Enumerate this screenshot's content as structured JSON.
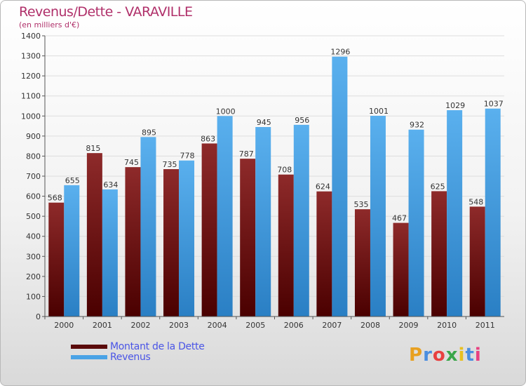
{
  "title": "Revenus/Dette - VARAVILLE",
  "subtitle": "(en milliers d'€)",
  "legend": {
    "dette_label": "Montant de la Dette",
    "revenus_label": "Revenus"
  },
  "logo": {
    "text": "Proxiti"
  },
  "colors": {
    "dette": "#7a1a1a",
    "revenus": "#4aa3e6",
    "title": "#b0306a",
    "legend_text": "#4a55e6"
  },
  "chart_data": {
    "type": "bar",
    "title": "Revenus/Dette - VARAVILLE",
    "ylabel": "(en milliers d'€)",
    "xlabel": "",
    "categories": [
      "2000",
      "2001",
      "2002",
      "2003",
      "2004",
      "2005",
      "2006",
      "2007",
      "2008",
      "2009",
      "2010",
      "2011"
    ],
    "series": [
      {
        "name": "Montant de la Dette",
        "values": [
          568,
          815,
          745,
          735,
          863,
          787,
          708,
          624,
          535,
          467,
          625,
          548
        ]
      },
      {
        "name": "Revenus",
        "values": [
          655,
          634,
          895,
          778,
          1000,
          945,
          956,
          1296,
          1001,
          932,
          1029,
          1037
        ]
      }
    ],
    "ylim": [
      0,
      1400
    ],
    "yticks": [
      0,
      100,
      200,
      300,
      400,
      500,
      600,
      700,
      800,
      900,
      1000,
      1100,
      1200,
      1300,
      1400
    ],
    "grid": true,
    "legend_position": "bottom-left"
  }
}
